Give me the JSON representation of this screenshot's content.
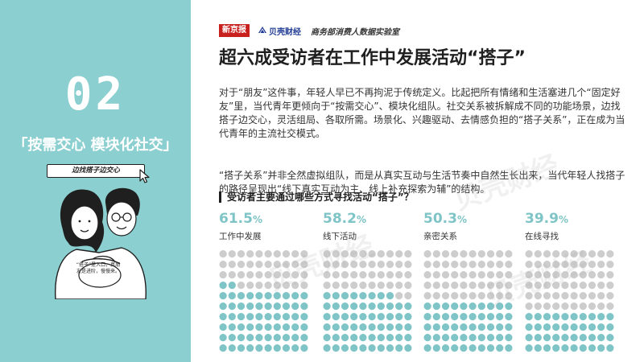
{
  "left_panel": {
    "number": "02",
    "title": "「按需交心 模块化社交」",
    "tag": "边找搭子边交心",
    "bubble": "“搭子”是入口，真朋友是进阶，慢慢来。",
    "colors": {
      "panel": "#8ccfd0"
    }
  },
  "header": {
    "logo1": "新京报",
    "logo2": "贝壳财经",
    "logo3": "商务部消费人数据实验室"
  },
  "main": {
    "title": "超六成受访者在工作中发展活动“搭子”",
    "paragraph1": "对于“朋友”这件事，年轻人早已不再拘泥于传统定义。比起把所有情绪和生活塞进几个“固定好友”里，当代青年更倾向于“按需交心”、模块化组队。社交关系被拆解成不同的功能场景，边找搭子边交心，灵活组局、各取所需。场景化、兴趣驱动、去情感负担的“搭子关系”，正在成为当代青年的主流社交模式。",
    "paragraph2": "“搭子关系”并非全然虚拟组队，而是从真实互动与生活节奏中自然生长出来，当代年轻人找搭子的路径呈现出“线下真实互动为主、线上补充探索为辅”的结构。",
    "sub_heading": "受访者主要通过哪些方式寻找活动“搭子”？"
  },
  "chart_data": {
    "type": "pictogram",
    "title": "受访者主要通过哪些方式寻找活动“搭子”？",
    "unit": "%",
    "categories": [
      "工作中发展",
      "线下活动",
      "亲密关系",
      "在线寻找"
    ],
    "values": [
      61.5,
      58.2,
      50.3,
      39.9
    ],
    "value_labels": [
      "61.5",
      "58.2",
      "50.3",
      "39.9"
    ],
    "colors": {
      "filled": "#7fc5c7",
      "empty": "#cdcdcd"
    }
  },
  "watermark": "贝壳财经"
}
